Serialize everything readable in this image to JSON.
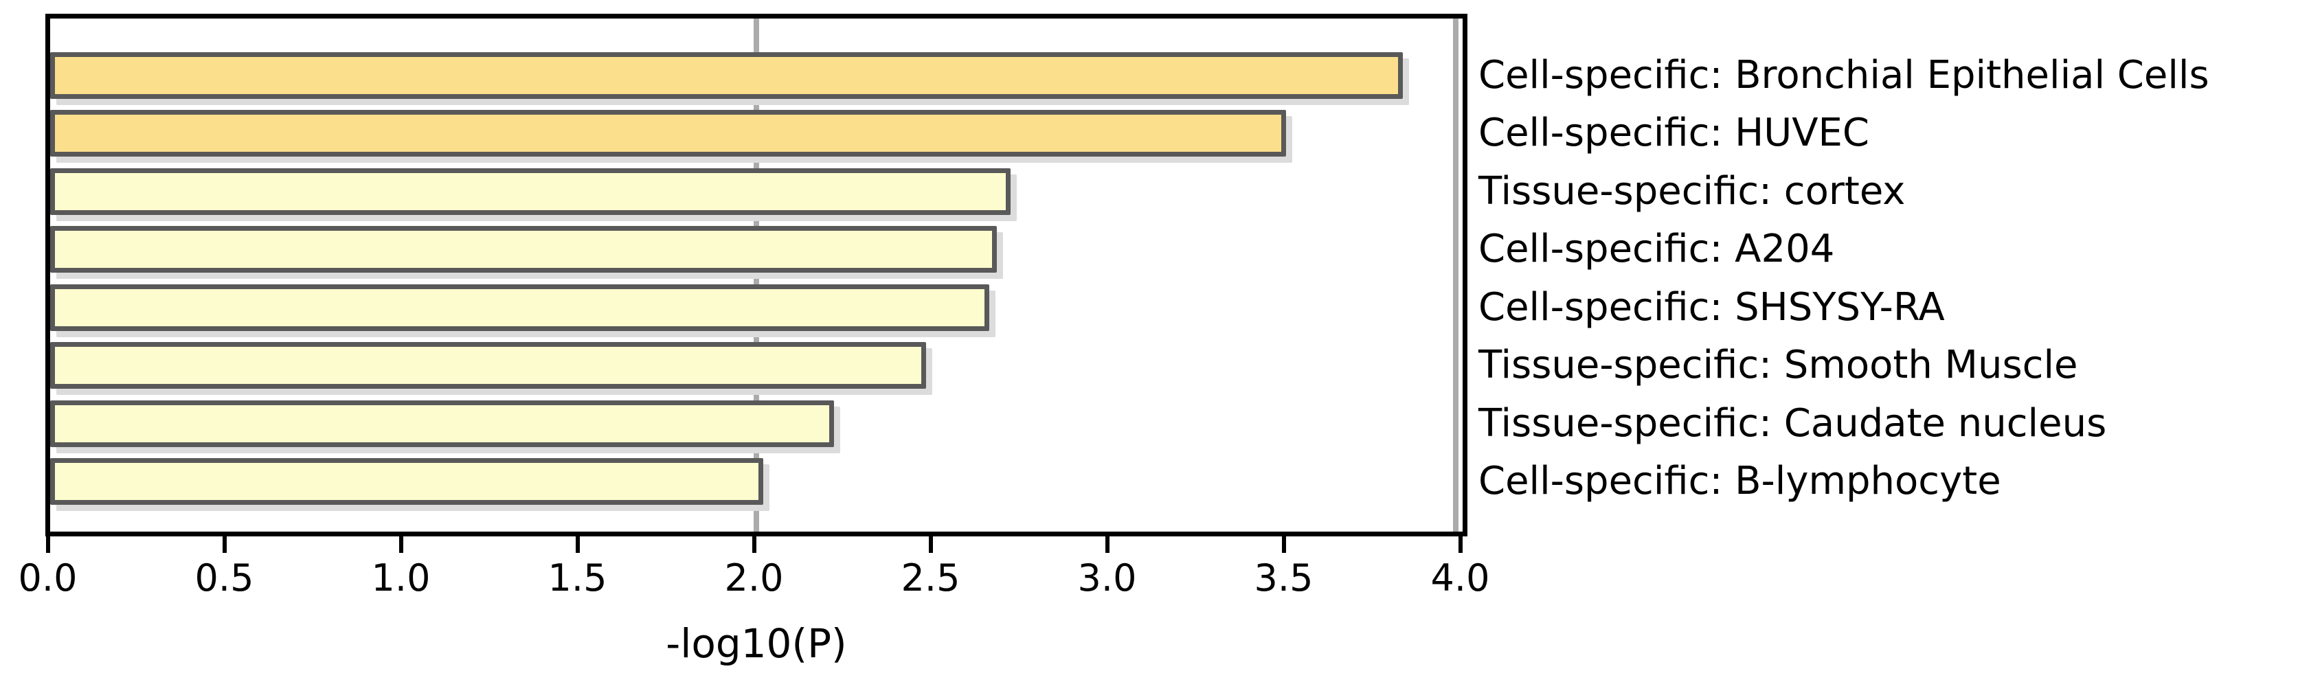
{
  "chart_data": {
    "type": "bar",
    "orientation": "horizontal",
    "title": "",
    "xlabel": "-log10(P)",
    "ylabel": "",
    "xlim": [
      0.0,
      4.0
    ],
    "x_ticks": [
      "0.0",
      "0.5",
      "1.0",
      "1.5",
      "2.0",
      "2.5",
      "3.0",
      "3.5",
      "4.0"
    ],
    "x_tick_values": [
      0.0,
      0.5,
      1.0,
      1.5,
      2.0,
      2.5,
      3.0,
      3.5,
      4.0
    ],
    "grid": false,
    "legend": "none",
    "reference_lines": [
      2.0,
      3.98
    ],
    "categories": [
      "Cell-specific: Bronchial Epithelial Cells",
      "Cell-specific: HUVEC",
      "Tissue-specific: cortex",
      "Cell-specific: A204",
      "Cell-specific: SHSYSY-RA",
      "Tissue-specific: Smooth Muscle",
      "Tissue-specific: Caudate nucleus",
      "Cell-specific: B-lymphocyte"
    ],
    "values": [
      3.83,
      3.5,
      2.72,
      2.68,
      2.66,
      2.48,
      2.22,
      2.02
    ],
    "bar_fill_colors": [
      "#FBDF8C",
      "#FBDF8C",
      "#FCFCCF",
      "#FCFCCF",
      "#FCFCCF",
      "#FCFCCF",
      "#FCFCCF",
      "#FCFCCF"
    ],
    "colors": {
      "bar_border": "#595959",
      "bar_shadow": "#dcdcdc",
      "reference_line": "#ababab",
      "axis": "#000000",
      "text": "#000000",
      "background": "#ffffff"
    }
  }
}
